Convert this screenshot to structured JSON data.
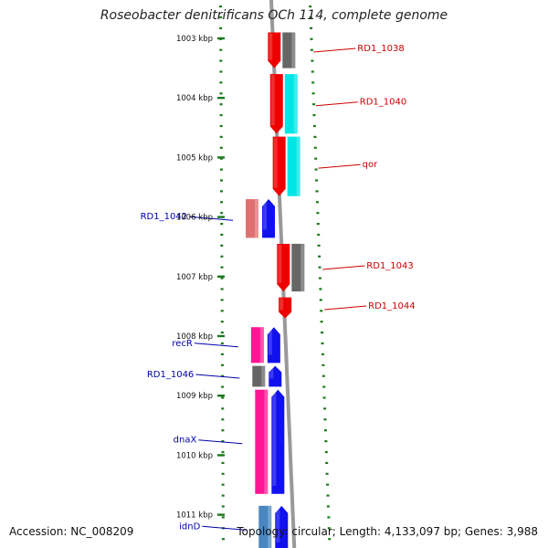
{
  "title": "Roseobacter denitrificans OCh 114, complete genome",
  "accession": "Accession: NC_008209",
  "summary": "Topology: circular; Length: 4,133,097 bp; Genes: 3,988",
  "colors": {
    "forward_label": "#cc0000",
    "reverse_label": "#0000aa",
    "tick": "#1a7a1a",
    "backbone": "#999999"
  },
  "ruler": [
    {
      "kbp": 1003,
      "label": "1003 kbp"
    },
    {
      "kbp": 1004,
      "label": "1004 kbp"
    },
    {
      "kbp": 1005,
      "label": "1005 kbp"
    },
    {
      "kbp": 1006,
      "label": "1006 kbp"
    },
    {
      "kbp": 1007,
      "label": "1007 kbp"
    },
    {
      "kbp": 1008,
      "label": "1008 kbp"
    },
    {
      "kbp": 1009,
      "label": "1009 kbp"
    },
    {
      "kbp": 1010,
      "label": "1010 kbp"
    },
    {
      "kbp": 1011,
      "label": "1011 kbp"
    }
  ],
  "features": [
    {
      "label": "RD1_1038",
      "strand": "+",
      "start": 1002.9,
      "end": 1003.5,
      "gene_color": "#ee0000",
      "cog_color": "#666666"
    },
    {
      "label": "RD1_1040",
      "strand": "+",
      "start": 1003.6,
      "end": 1004.6,
      "gene_color": "#ee0000",
      "cog_color": "#00e5e5"
    },
    {
      "label": "qor",
      "strand": "+",
      "start": 1004.65,
      "end": 1005.65,
      "gene_color": "#ee0000",
      "cog_color": "#00e5e5"
    },
    {
      "label": "RD1_1042",
      "strand": "-",
      "start": 1005.7,
      "end": 1006.35,
      "gene_color": "#1111ee",
      "cog_color": "#e07070"
    },
    {
      "label": "RD1_1043",
      "strand": "+",
      "start": 1006.45,
      "end": 1007.25,
      "gene_color": "#ee0000",
      "cog_color": "#666666"
    },
    {
      "label": "RD1_1044",
      "strand": "+",
      "start": 1007.35,
      "end": 1007.7,
      "gene_color": "#ee0000",
      "cog_color": ""
    },
    {
      "label": "recR",
      "strand": "-",
      "start": 1007.85,
      "end": 1008.45,
      "gene_color": "#1111ee",
      "cog_color": "#ff1493"
    },
    {
      "label": "RD1_1046",
      "strand": "-",
      "start": 1008.5,
      "end": 1008.85,
      "gene_color": "#1111ee",
      "cog_color": "#666666"
    },
    {
      "label": "dnaX",
      "strand": "-",
      "start": 1008.9,
      "end": 1010.65,
      "gene_color": "#1111ee",
      "cog_color": "#ff1493"
    },
    {
      "label": "idnD",
      "strand": "-",
      "start": 1010.85,
      "end": 1011.6,
      "gene_color": "#1111ee",
      "cog_color": "#4a86c0"
    }
  ]
}
